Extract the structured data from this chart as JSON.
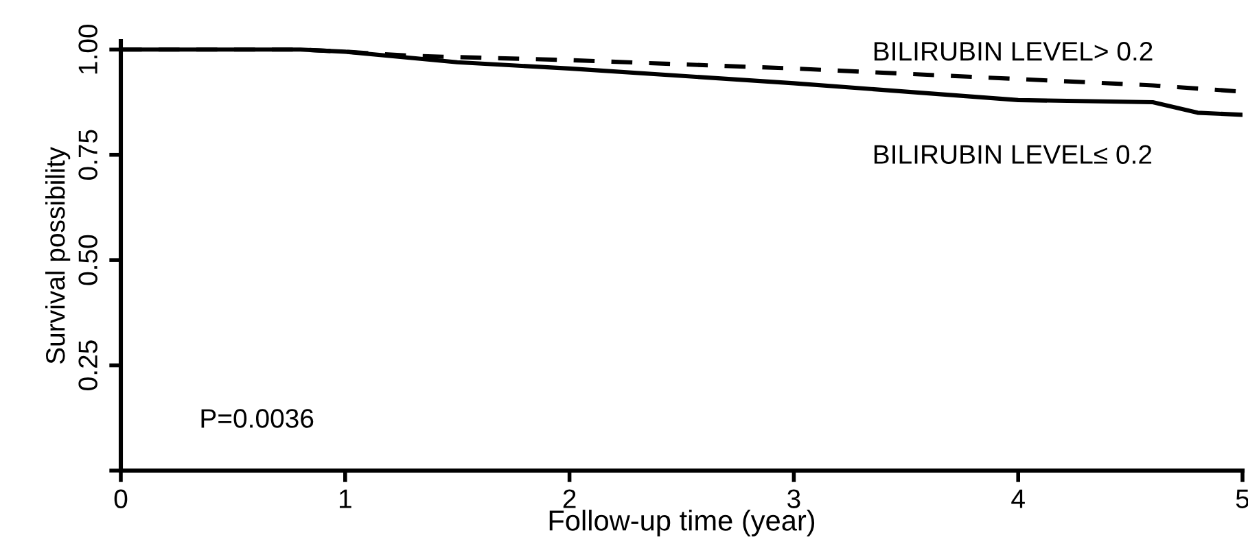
{
  "chart_data": {
    "type": "line",
    "xlabel": "Follow-up time (year)",
    "ylabel": "Survival possibility",
    "xlim": [
      0,
      5
    ],
    "xticks": [
      0,
      1,
      2,
      3,
      4,
      5
    ],
    "ylim": [
      0,
      1.02
    ],
    "yticks": [
      {
        "value": 0,
        "label": null
      },
      {
        "value": 0.25,
        "label": "0.25"
      },
      {
        "value": 0.5,
        "label": "0.50"
      },
      {
        "value": 0.75,
        "label": "0.75"
      },
      {
        "value": 1,
        "label": "1.00"
      }
    ],
    "grid": false,
    "legend": false,
    "marker": "none",
    "series": [
      {
        "name": "BILIRUBIN LEVEL> 0.2",
        "color": "#000000",
        "line_style": "dashed",
        "x": [
          0,
          0.8,
          1,
          1.3,
          2,
          3,
          4,
          4.6,
          5
        ],
        "values": [
          1,
          1,
          0.995,
          0.985,
          0.975,
          0.955,
          0.93,
          0.915,
          0.9
        ]
      },
      {
        "name": "BILIRUBIN LEVEL≤ 0.2",
        "color": "#000000",
        "line_style": "solid",
        "x": [
          0,
          0.8,
          1,
          1.5,
          2,
          3,
          4,
          4.6,
          4.8,
          5
        ],
        "values": [
          1,
          1,
          0.995,
          0.97,
          0.955,
          0.92,
          0.88,
          0.875,
          0.85,
          0.845
        ]
      }
    ],
    "annotations": [
      "P=0.0036"
    ]
  }
}
